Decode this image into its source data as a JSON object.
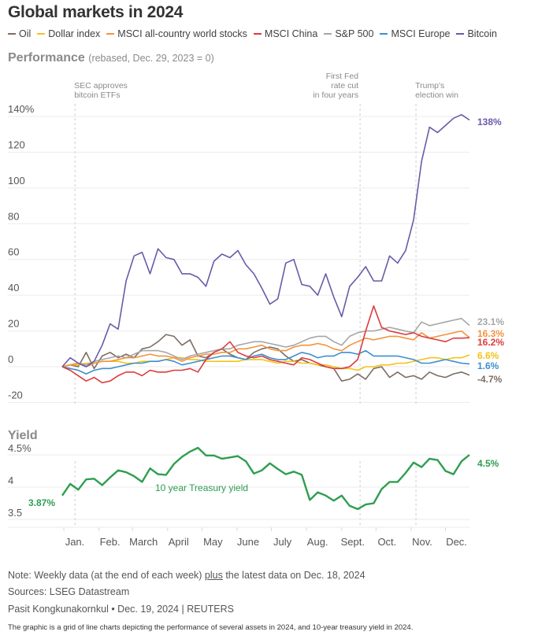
{
  "header": {
    "title": "Global markets in 2024"
  },
  "legend": [
    {
      "name": "Oil",
      "color": "#7d6e63"
    },
    {
      "name": "Dollar index",
      "color": "#f2c318"
    },
    {
      "name": "MSCI all-country world stocks",
      "color": "#f5923e"
    },
    {
      "name": "MSCI China",
      "color": "#dc3c3c"
    },
    {
      "name": "S&P 500",
      "color": "#a6a6a6"
    },
    {
      "name": "MSCI Europe",
      "color": "#3f8fce"
    },
    {
      "name": "Bitcoin",
      "color": "#6a5aa8"
    }
  ],
  "performance": {
    "title": "Performance",
    "subtitle": "(rebased, Dec. 29, 2023 = 0)"
  },
  "yield_section": {
    "title": "Yield"
  },
  "footer": {
    "note_prefix": "Note: Weekly data (at the end of each week) ",
    "note_underlined": "plus",
    "note_suffix": " the latest data on Dec. 18, 2024",
    "sources": "Sources: LSEG Datastream",
    "byline": "Pasit Kongkunakornkul • Dec. 19, 2024 | REUTERS",
    "caption": "The graphic is a grid of line charts depicting the performance of several assets in 2024, and 10-year treasury yield in 2024."
  },
  "chart_data": [
    {
      "type": "line",
      "title": "Performance (rebased, Dec. 29, 2023 = 0)",
      "xlabel": "",
      "ylabel": "",
      "ylim": [
        -20,
        140
      ],
      "yticks": [
        -20,
        0,
        20,
        40,
        60,
        80,
        100,
        120,
        140
      ],
      "ytick_labels": [
        "-20",
        "0",
        "20",
        "40",
        "60",
        "80",
        "100",
        "120",
        "140%"
      ],
      "grid": true,
      "legend_position": "top",
      "x_months": [
        "Jan.",
        "Feb.",
        "March",
        "April",
        "May",
        "June",
        "July",
        "Aug.",
        "Sept.",
        "Oct.",
        "Nov.",
        "Dec."
      ],
      "annotations": [
        {
          "text_lines": [
            "SEC approves",
            "bitcoin ETFs"
          ],
          "week": 1.6,
          "align": "left"
        },
        {
          "text_lines": [
            "First Fed",
            "rate cut",
            "in four years"
          ],
          "week": 37.3,
          "align": "right"
        },
        {
          "text_lines": [
            "Trump's",
            "election win"
          ],
          "week": 44.3,
          "align": "left"
        }
      ],
      "series": [
        {
          "name": "Bitcoin",
          "color": "#6a5aa8",
          "end_label": "138%",
          "values": [
            0,
            5,
            2,
            0,
            3,
            12,
            24,
            21,
            48,
            62,
            64,
            52,
            66,
            61,
            60,
            52,
            52,
            50,
            45,
            59,
            63,
            61,
            65,
            57,
            52,
            44,
            35,
            38,
            58,
            60,
            46,
            45,
            40,
            52,
            39,
            28,
            45,
            50,
            56,
            48,
            48,
            62,
            58,
            65,
            82,
            115,
            134,
            131,
            135,
            139,
            141,
            138
          ]
        },
        {
          "name": "S&P 500",
          "color": "#a6a6a6",
          "end_label": "23.1%",
          "values": [
            0,
            1,
            2,
            1,
            3,
            4,
            5,
            6,
            5,
            7,
            9,
            9,
            9,
            8,
            6,
            4,
            6,
            7,
            8,
            9,
            10,
            10,
            12,
            13,
            14,
            14,
            13,
            12,
            11,
            12,
            14,
            16,
            17,
            17,
            14,
            12,
            17,
            19,
            20,
            20,
            21,
            22,
            21,
            20,
            19,
            25,
            23,
            24,
            25,
            26,
            27,
            23.1
          ]
        },
        {
          "name": "MSCI all-country world stocks",
          "color": "#f5923e",
          "end_label": "16.3%",
          "values": [
            0,
            1,
            2,
            0,
            2,
            3,
            3,
            4,
            5,
            5,
            6,
            7,
            6,
            6,
            5,
            3,
            5,
            6,
            7,
            7,
            8,
            8,
            10,
            10,
            11,
            12,
            10,
            9,
            9,
            11,
            12,
            12,
            13,
            12,
            10,
            9,
            12,
            14,
            16,
            15,
            16,
            17,
            17,
            16,
            15,
            19,
            16,
            17,
            18,
            19,
            20,
            16.3
          ]
        },
        {
          "name": "MSCI China",
          "color": "#dc3c3c",
          "end_label": "16.2%",
          "values": [
            0,
            -2,
            -5,
            -8,
            -6,
            -9,
            -8,
            -5,
            -3,
            -3,
            -5,
            -2,
            -3,
            -3,
            -2,
            -2,
            -1,
            -3,
            4,
            8,
            10,
            14,
            8,
            6,
            5,
            6,
            4,
            3,
            2,
            1,
            5,
            4,
            2,
            0,
            -1,
            -1,
            0,
            4,
            20,
            34,
            22,
            20,
            19,
            18,
            19,
            17,
            16,
            15,
            14,
            16,
            16,
            16.2
          ]
        },
        {
          "name": "Dollar index",
          "color": "#f2c318",
          "end_label": "6.6%",
          "values": [
            0,
            1,
            1,
            2,
            2,
            3,
            3,
            3,
            2,
            2,
            3,
            3,
            3,
            4,
            5,
            5,
            4,
            4,
            3,
            3,
            3,
            3,
            3,
            4,
            4,
            4,
            3,
            2,
            3,
            3,
            2,
            2,
            1,
            1,
            0,
            -1,
            -1,
            -2,
            0,
            0,
            1,
            1,
            2,
            2,
            3,
            4,
            5,
            5,
            4,
            5,
            5,
            6.6
          ]
        },
        {
          "name": "MSCI Europe",
          "color": "#3f8fce",
          "end_label": "1.6%",
          "values": [
            0,
            -1,
            -2,
            -4,
            -2,
            -1,
            -1,
            0,
            1,
            2,
            2,
            3,
            3,
            4,
            3,
            1,
            2,
            3,
            4,
            5,
            6,
            6,
            5,
            4,
            6,
            7,
            5,
            4,
            4,
            6,
            8,
            7,
            5,
            6,
            6,
            8,
            8,
            7,
            9,
            6,
            6,
            6,
            6,
            5,
            4,
            2,
            2,
            3,
            4,
            3,
            2,
            1.6
          ]
        },
        {
          "name": "Oil",
          "color": "#7d6e63",
          "end_label": "-4.7%",
          "values": [
            0,
            1,
            0,
            8,
            -1,
            6,
            8,
            5,
            7,
            5,
            10,
            11,
            14,
            18,
            17,
            12,
            15,
            6,
            5,
            8,
            10,
            7,
            5,
            4,
            8,
            10,
            11,
            10,
            6,
            3,
            4,
            2,
            1,
            0,
            -1,
            -8,
            -7,
            -4,
            -7,
            -1,
            0,
            -6,
            -3,
            -6,
            -5,
            -7,
            -3,
            -5,
            -6,
            -4,
            -3,
            -4.7
          ]
        }
      ]
    },
    {
      "type": "line",
      "title": "Yield",
      "ylim": [
        3.5,
        4.6
      ],
      "yticks": [
        3.5,
        4,
        4.5
      ],
      "ytick_labels": [
        "3.5",
        "4",
        "4.5%"
      ],
      "grid": true,
      "x_months": [
        "Jan.",
        "Feb.",
        "March",
        "April",
        "May",
        "June",
        "July",
        "Aug.",
        "Sept.",
        "Oct.",
        "Nov.",
        "Dec."
      ],
      "series": [
        {
          "name": "10 year Treasury yield",
          "color": "#2e9e4f",
          "start_label": "3.87%",
          "end_label": "4.5%",
          "values": [
            3.87,
            4.05,
            3.96,
            4.12,
            4.13,
            4.03,
            4.15,
            4.26,
            4.23,
            4.17,
            4.08,
            4.29,
            4.2,
            4.19,
            4.36,
            4.47,
            4.55,
            4.61,
            4.49,
            4.49,
            4.44,
            4.46,
            4.48,
            4.4,
            4.21,
            4.26,
            4.37,
            4.28,
            4.2,
            4.24,
            4.19,
            3.8,
            3.92,
            3.87,
            3.79,
            3.87,
            3.71,
            3.66,
            3.73,
            3.75,
            3.97,
            4.08,
            4.08,
            4.22,
            4.38,
            4.31,
            4.44,
            4.42,
            4.25,
            4.2,
            4.4,
            4.5
          ]
        }
      ]
    }
  ]
}
